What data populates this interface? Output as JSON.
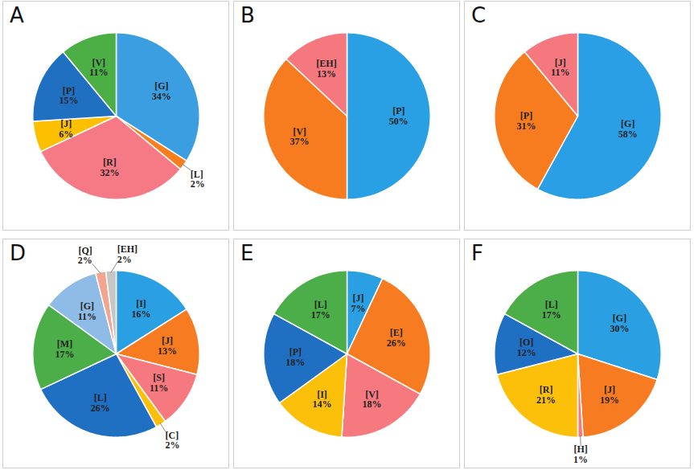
{
  "chart_data": [
    {
      "type": "pie",
      "title": "A",
      "data_labels": true,
      "categories": [
        "[G]",
        "[L]",
        "[R]",
        "[J]",
        "[P]",
        "[V]"
      ],
      "values": [
        34,
        2,
        32,
        6,
        15,
        11
      ],
      "value_labels": [
        "34%",
        "2%",
        "32%",
        "6%",
        "15%",
        "11%"
      ],
      "colors": [
        "#3a9ee0",
        "#f77f1e",
        "#f67a85",
        "#fdc000",
        "#1f70c1",
        "#4caf46"
      ]
    },
    {
      "type": "pie",
      "title": "B",
      "data_labels": true,
      "categories": [
        "[P]",
        "[V]",
        "[EH]"
      ],
      "values": [
        50,
        37,
        13
      ],
      "value_labels": [
        "50%",
        "37%",
        "13%"
      ],
      "colors": [
        "#29a0e3",
        "#f77b1f",
        "#f6787f"
      ]
    },
    {
      "type": "pie",
      "title": "C",
      "data_labels": true,
      "categories": [
        "[G]",
        "[P]",
        "[J]"
      ],
      "values": [
        58,
        31,
        11
      ],
      "value_labels": [
        "58%",
        "31%",
        "11%"
      ],
      "colors": [
        "#2b9fe5",
        "#f77b1f",
        "#f6787f"
      ]
    },
    {
      "type": "pie",
      "title": "D",
      "data_labels": true,
      "categories": [
        "[I]",
        "[J]",
        "[S]",
        "[C]",
        "[L]",
        "[M]",
        "[G]",
        "[Q]",
        "[EH]"
      ],
      "values": [
        16,
        13,
        11,
        2,
        26,
        17,
        11,
        2,
        2
      ],
      "value_labels": [
        "16%",
        "13%",
        "11%",
        "2%",
        "26%",
        "17%",
        "11%",
        "2%",
        "2%"
      ],
      "colors": [
        "#2a9fe2",
        "#f77b20",
        "#f6797f",
        "#fdc00a",
        "#1f6fc3",
        "#4cae48",
        "#8fbce6",
        "#f4a58f",
        "#c6c6c6"
      ]
    },
    {
      "type": "pie",
      "title": "E",
      "data_labels": true,
      "categories": [
        "[J]",
        "[E]",
        "[V]",
        "[I]",
        "[P]",
        "[L]"
      ],
      "values": [
        7,
        26,
        18,
        14,
        18,
        17
      ],
      "value_labels": [
        "7%",
        "26%",
        "18%",
        "14%",
        "18%",
        "17%"
      ],
      "colors": [
        "#2a9fe2",
        "#f77b20",
        "#f6797f",
        "#fdc00a",
        "#1f6fc3",
        "#4cae48"
      ]
    },
    {
      "type": "pie",
      "title": "F",
      "data_labels": true,
      "categories": [
        "[G]",
        "[J]",
        "[H]",
        "[R]",
        "[O]",
        "[L]"
      ],
      "values": [
        30,
        19,
        1,
        21,
        12,
        17
      ],
      "value_labels": [
        "30%",
        "19%",
        "1%",
        "21%",
        "12%",
        "17%"
      ],
      "colors": [
        "#2a9fe2",
        "#f77b20",
        "#f6797f",
        "#fdc00a",
        "#1f6fc3",
        "#4cae48"
      ]
    }
  ]
}
